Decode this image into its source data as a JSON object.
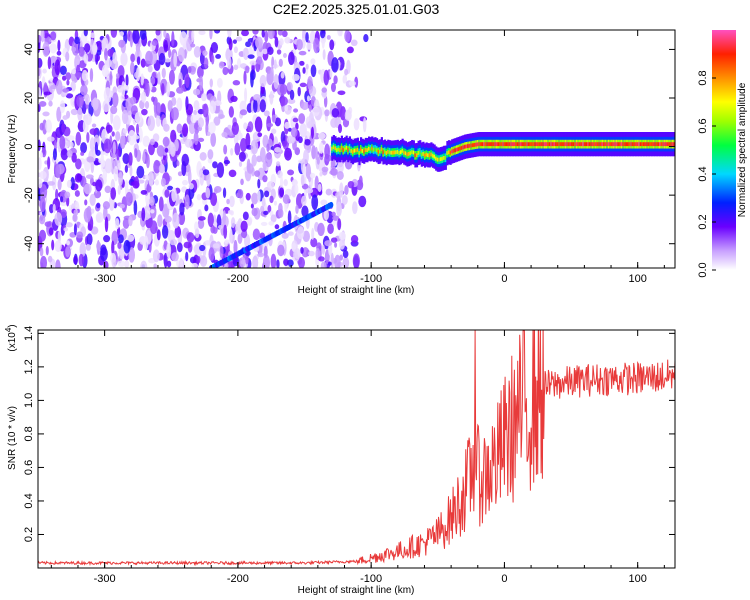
{
  "title": "C2E2.2025.325.01.01.G03",
  "chart_data": [
    {
      "type": "heatmap",
      "xlabel": "Height of straight line (km)",
      "ylabel": "Frequency (Hz)",
      "xlim": [
        -350,
        128
      ],
      "ylim": [
        -50,
        48
      ],
      "xticks": [
        -300,
        -200,
        -100,
        0,
        100
      ],
      "yticks": [
        -40,
        -20,
        0,
        20,
        40
      ],
      "colorbar": {
        "label": "Normalized spectral amplitude",
        "range": [
          0,
          1
        ],
        "ticks": [
          "0.0",
          "0.2",
          "0.4",
          "0.6",
          "0.8"
        ],
        "colormap": "rainbow (white/violet → blue → cyan → green → yellow → orange → red)"
      },
      "features": {
        "noise_region_x": [
          -350,
          -105
        ],
        "signal_ridge": {
          "x": [
            -130,
            -120,
            -110,
            -100,
            -90,
            -80,
            -70,
            -60,
            -50,
            -45,
            -40,
            -30,
            -20,
            -10,
            0,
            20,
            50,
            80,
            100,
            128
          ],
          "freq": [
            -1,
            -1,
            -2,
            -1,
            -2,
            -2,
            -3,
            -3,
            -5,
            -4,
            -2,
            0,
            1,
            1,
            1,
            1,
            1,
            1,
            1,
            1
          ]
        },
        "chirp_streak": {
          "x": [
            -220,
            -130
          ],
          "freq": [
            -50,
            -24
          ]
        }
      }
    },
    {
      "type": "line",
      "xlabel": "Height of straight line (km)",
      "ylabel": "SNR (10 * v/v)",
      "yscale_label": "(x10",
      "yscale_exp": "4",
      "xlim": [
        -350,
        128
      ],
      "ylim": [
        0,
        1.42
      ],
      "xticks": [
        -300,
        -200,
        -100,
        0,
        100
      ],
      "yticks": [
        "0.2",
        "0.4",
        "0.6",
        "0.8",
        "1.0",
        "1.2",
        "1.4"
      ],
      "series": [
        {
          "color": "#e83a3a",
          "x": [
            -350,
            -150,
            -110,
            -100,
            -80,
            -60,
            -50,
            -40,
            -30,
            -25,
            -22,
            -20,
            -15,
            -10,
            -5,
            0,
            10,
            20,
            30,
            40,
            60,
            80,
            100,
            128
          ],
          "y": [
            0.03,
            0.03,
            0.04,
            0.06,
            0.1,
            0.15,
            0.2,
            0.3,
            0.45,
            0.55,
            0.62,
            0.55,
            0.55,
            0.6,
            0.65,
            0.75,
            0.9,
            1.0,
            1.08,
            1.1,
            1.12,
            1.13,
            1.13,
            1.15
          ]
        }
      ],
      "spike": {
        "x": -22,
        "y": 1.42
      }
    }
  ]
}
